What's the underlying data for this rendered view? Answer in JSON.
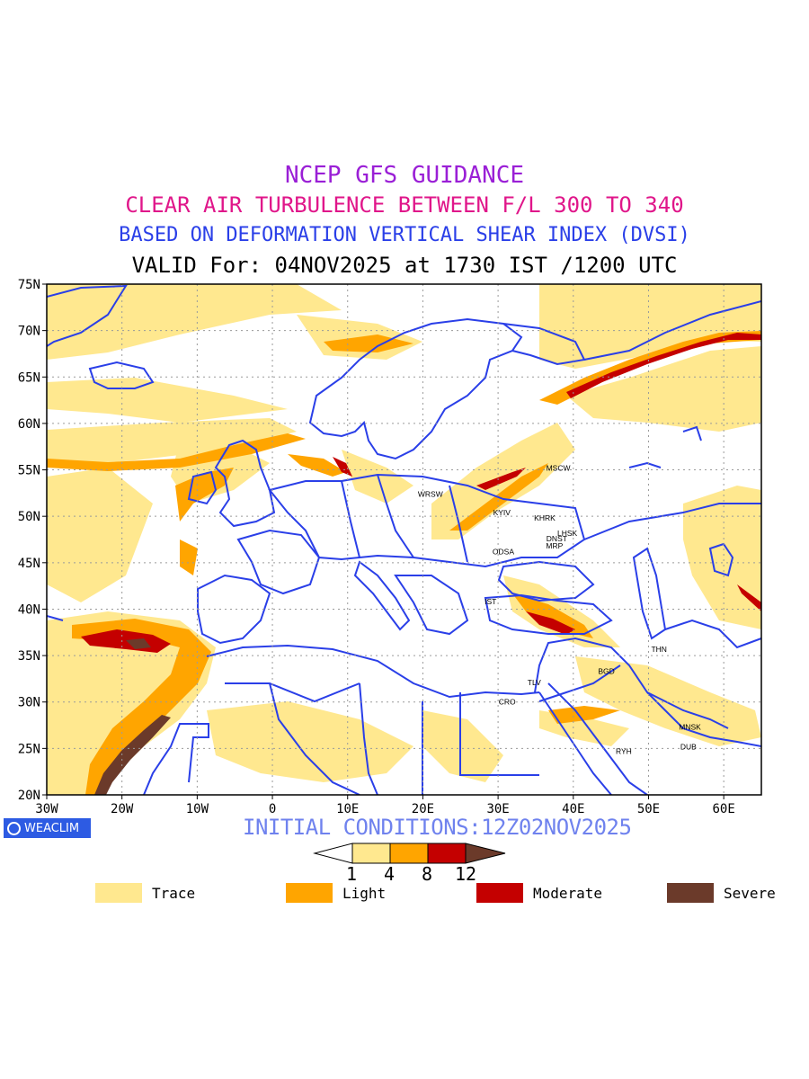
{
  "title": {
    "line1": "NCEP GFS GUIDANCE",
    "line2": "CLEAR AIR TURBULENCE BETWEEN F/L 300 TO 340",
    "line3": "BASED ON DEFORMATION VERTICAL SHEAR INDEX (DVSI)",
    "line4": "VALID For: 04NOV2025 at 1730 IST /1200 UTC"
  },
  "map": {
    "lon_range": [
      -30,
      65
    ],
    "lat_range": [
      20,
      75
    ],
    "lat_ticks": [
      "20N",
      "25N",
      "30N",
      "35N",
      "40N",
      "45N",
      "50N",
      "55N",
      "60N",
      "65N",
      "70N",
      "75N"
    ],
    "lon_ticks": [
      "30W",
      "20W",
      "10W",
      "0",
      "10E",
      "20E",
      "30E",
      "40E",
      "50E",
      "60E"
    ],
    "stations": [
      {
        "name": "MSCW",
        "lon": 38.0,
        "lat": 55.2
      },
      {
        "name": "WRSW",
        "lon": 21.0,
        "lat": 52.4
      },
      {
        "name": "KYIV",
        "lon": 30.5,
        "lat": 50.4
      },
      {
        "name": "KHRK",
        "lon": 36.2,
        "lat": 49.8
      },
      {
        "name": "LHSK",
        "lon": 39.2,
        "lat": 48.2
      },
      {
        "name": "DNST",
        "lon": 37.8,
        "lat": 47.6
      },
      {
        "name": "MRP",
        "lon": 37.5,
        "lat": 46.8
      },
      {
        "name": "ODSA",
        "lon": 30.7,
        "lat": 46.2
      },
      {
        "name": "IST",
        "lon": 29.0,
        "lat": 40.8
      },
      {
        "name": "THN",
        "lon": 51.4,
        "lat": 35.7
      },
      {
        "name": "BGD",
        "lon": 44.4,
        "lat": 33.3
      },
      {
        "name": "TLV",
        "lon": 34.8,
        "lat": 32.1
      },
      {
        "name": "CRO",
        "lon": 31.2,
        "lat": 30.0
      },
      {
        "name": "MNSK",
        "lon": 55.5,
        "lat": 27.3
      },
      {
        "name": "DUB",
        "lon": 55.3,
        "lat": 25.2
      },
      {
        "name": "RYH",
        "lon": 46.7,
        "lat": 24.7
      }
    ]
  },
  "colorbar": {
    "labels": [
      "1",
      "4",
      "8",
      "12"
    ],
    "colors": [
      "#ffe88f",
      "#ffa500",
      "#c40000",
      "#6b3a2a"
    ]
  },
  "legend": [
    {
      "label": "Trace",
      "color": "#ffe88f"
    },
    {
      "label": "Light",
      "color": "#ffa500"
    },
    {
      "label": "Moderate",
      "color": "#c40000"
    },
    {
      "label": "Severe",
      "color": "#6b3a2a"
    }
  ],
  "initial_conditions": "INITIAL CONDITIONS:12Z02NOV2025",
  "logo_text": "WEACLIM",
  "colors": {
    "boundary": "#2a3fe8",
    "trace": "#ffe88f",
    "light": "#ffa500",
    "moderate": "#c40000",
    "severe": "#6b3a2a"
  }
}
